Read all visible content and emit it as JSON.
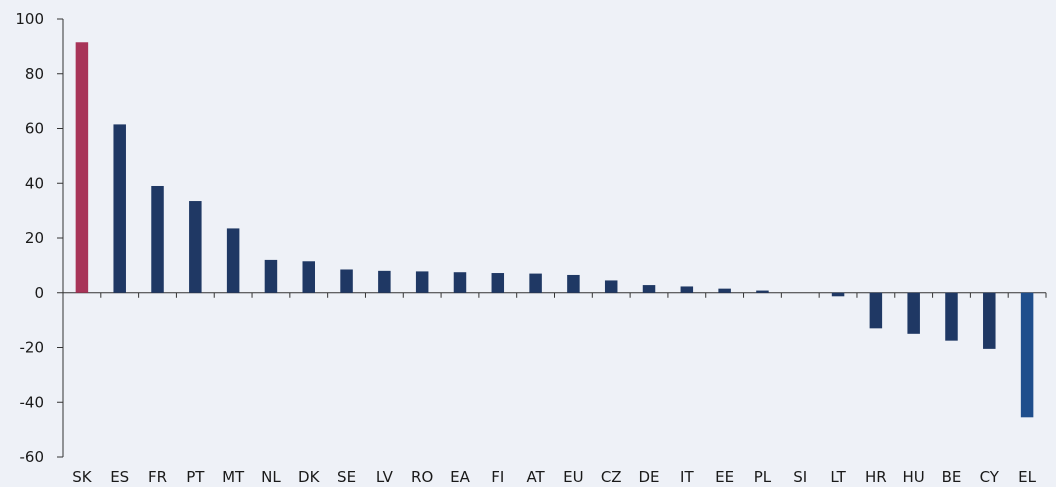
{
  "chart_data": {
    "type": "bar",
    "title": "",
    "xlabel": "",
    "ylabel": "",
    "ylim": [
      -60,
      100
    ],
    "yticks": [
      100,
      80,
      60,
      40,
      20,
      0,
      -20,
      -40,
      -60
    ],
    "grid": false,
    "categories": [
      "SK",
      "ES",
      "FR",
      "PT",
      "MT",
      "NL",
      "DK",
      "SE",
      "LV",
      "RO",
      "EA",
      "FI",
      "AT",
      "EU",
      "CZ",
      "DE",
      "IT",
      "EE",
      "PL",
      "SI",
      "LT",
      "HR",
      "HU",
      "BE",
      "CY",
      "EL"
    ],
    "values": [
      91.5,
      61.5,
      39,
      33.5,
      23.5,
      12,
      11.5,
      8.5,
      8,
      7.8,
      7.5,
      7.2,
      7,
      6.5,
      4.5,
      2.8,
      2.3,
      1.5,
      0.8,
      0,
      -1.3,
      -13,
      -15,
      -17.5,
      -20.5,
      -45.5
    ],
    "colors": {
      "default": "#1f3864",
      "highlight_first": "#a83458",
      "highlight_last": "#1f4e8c"
    }
  }
}
